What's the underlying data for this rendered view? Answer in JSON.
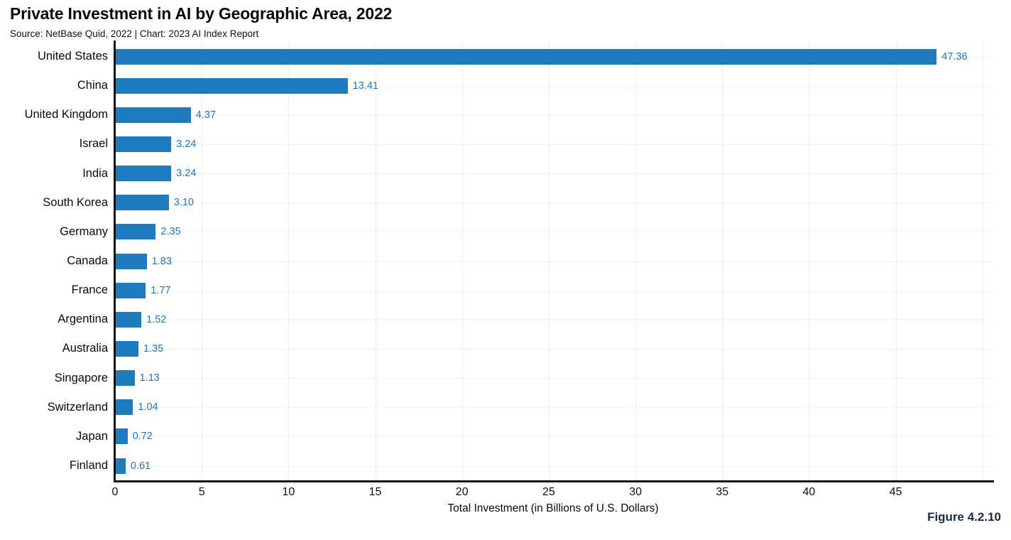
{
  "header": {
    "title": "Private Investment in AI by Geographic Area, 2022",
    "source_line": "Source: NetBase Quid, 2022 | Chart: 2023 AI Index Report"
  },
  "figure_label": "Figure 4.2.10",
  "chart_data": {
    "type": "bar",
    "orientation": "horizontal",
    "title": "Private Investment in AI by Geographic Area, 2022",
    "subtitle": "Source: NetBase Quid, 2022 | Chart: 2023 AI Index Report",
    "categories": [
      "United States",
      "China",
      "United Kingdom",
      "Israel",
      "India",
      "South Korea",
      "Germany",
      "Canada",
      "France",
      "Argentina",
      "Australia",
      "Singapore",
      "Switzerland",
      "Japan",
      "Finland"
    ],
    "values": [
      47.36,
      13.41,
      4.37,
      3.24,
      3.24,
      3.1,
      2.35,
      1.83,
      1.77,
      1.52,
      1.35,
      1.13,
      1.04,
      0.72,
      0.61
    ],
    "value_labels": [
      "47.36",
      "13.41",
      "4.37",
      "3.24",
      "3.24",
      "3.10",
      "2.35",
      "1.83",
      "1.77",
      "1.52",
      "1.35",
      "1.13",
      "1.04",
      "0.72",
      "0.61"
    ],
    "xlabel": "Total Investment (in Billions of U.S. Dollars)",
    "ylabel": "",
    "xticks": [
      0,
      5,
      10,
      15,
      20,
      25,
      30,
      35,
      40,
      45
    ],
    "xlim": [
      0,
      50.5
    ],
    "gridlines": "light vertical lines every 5 units and light horizontal line at each bar center",
    "legend": "none",
    "colors": {
      "bar": "#1e7bbe",
      "value_label": "#2176be",
      "axis": "#111111",
      "gridline": "#ededed",
      "figure_label": "#152c47"
    }
  }
}
